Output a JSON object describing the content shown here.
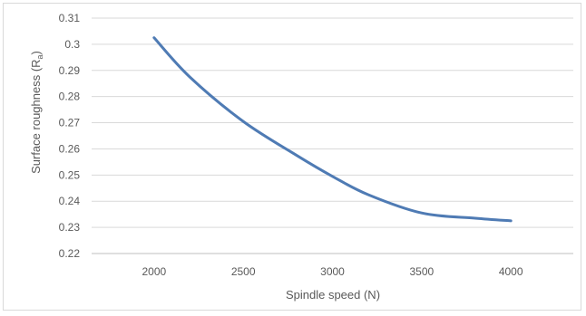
{
  "chart_data": {
    "type": "line",
    "xlabel": "Spindle speed (N)",
    "ylabel_main": "Surface roughness (R",
    "ylabel_sub": "a",
    "ylabel_close": ")",
    "x_ticks": [
      "2000",
      "2500",
      "3000",
      "3500",
      "4000"
    ],
    "y_ticks": [
      "0.22",
      "0.23",
      "0.24",
      "0.25",
      "0.26",
      "0.27",
      "0.28",
      "0.29",
      "0.3",
      "0.31"
    ],
    "xlim": [
      1650,
      4350
    ],
    "ylim": [
      0.22,
      0.31
    ],
    "grid": true,
    "series": [
      {
        "color": "#4f7bb4",
        "x": [
          2000,
          2200,
          2500,
          2800,
          3000,
          3200,
          3500,
          3800,
          4000
        ],
        "y": [
          0.3025,
          0.2875,
          0.2705,
          0.2575,
          0.2495,
          0.2425,
          0.2355,
          0.2335,
          0.2325
        ]
      }
    ]
  }
}
